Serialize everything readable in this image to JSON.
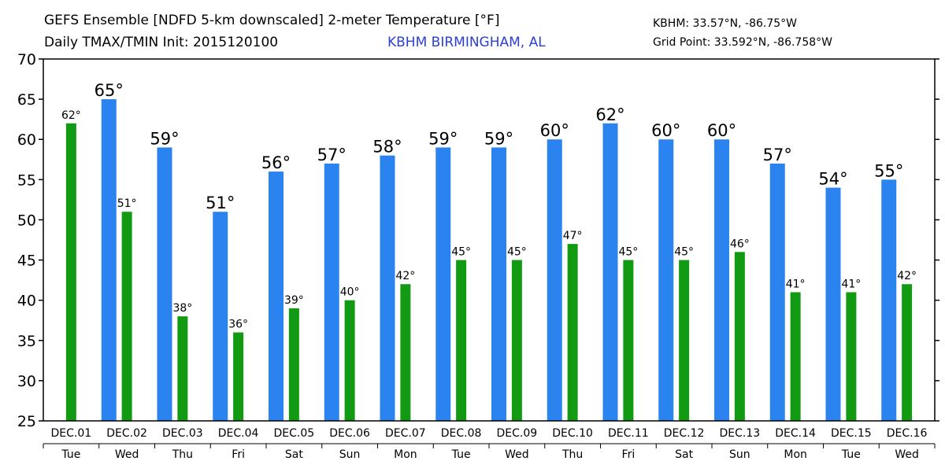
{
  "header": {
    "title_line1": "GEFS Ensemble [NDFD 5-km downscaled] 2-meter Temperature [°F]",
    "title_line2": "Daily TMAX/TMIN Init: 2015120100",
    "location": "KBHM BIRMINGHAM, AL",
    "station_coords": "KBHM: 33.57°N, -86.75°W",
    "grid_point": "Grid Point: 33.592°N, -86.758°W"
  },
  "colors": {
    "tmax": "#2b83f0",
    "tmin": "#129a12",
    "location_text": "#2a3fd6"
  },
  "chart_data": {
    "type": "bar",
    "title": "GEFS Ensemble [NDFD 5-km downscaled] 2-meter Temperature [°F]",
    "ylim": [
      25,
      70
    ],
    "yticks": [
      25,
      30,
      35,
      40,
      45,
      50,
      55,
      60,
      65,
      70
    ],
    "unit_suffix": "°",
    "dates": [
      "DEC.01",
      "DEC.02",
      "DEC.03",
      "DEC.04",
      "DEC.05",
      "DEC.06",
      "DEC.07",
      "DEC.08",
      "DEC.09",
      "DEC.10",
      "DEC.11",
      "DEC.12",
      "DEC.13",
      "DEC.14",
      "DEC.15",
      "DEC.16"
    ],
    "weekdays": [
      "Tue",
      "Wed",
      "Thu",
      "Fri",
      "Sat",
      "Sun",
      "Mon",
      "Tue",
      "Wed",
      "Thu",
      "Fri",
      "Sat",
      "Sun",
      "Mon",
      "Tue",
      "Wed"
    ],
    "series": [
      {
        "name": "TMAX",
        "values": [
          null,
          65,
          59,
          51,
          56,
          57,
          58,
          59,
          59,
          60,
          62,
          60,
          60,
          57,
          54,
          55
        ]
      },
      {
        "name": "TMIN",
        "values": [
          62,
          51,
          38,
          36,
          39,
          40,
          42,
          45,
          45,
          47,
          45,
          45,
          46,
          41,
          41,
          42
        ]
      }
    ]
  }
}
